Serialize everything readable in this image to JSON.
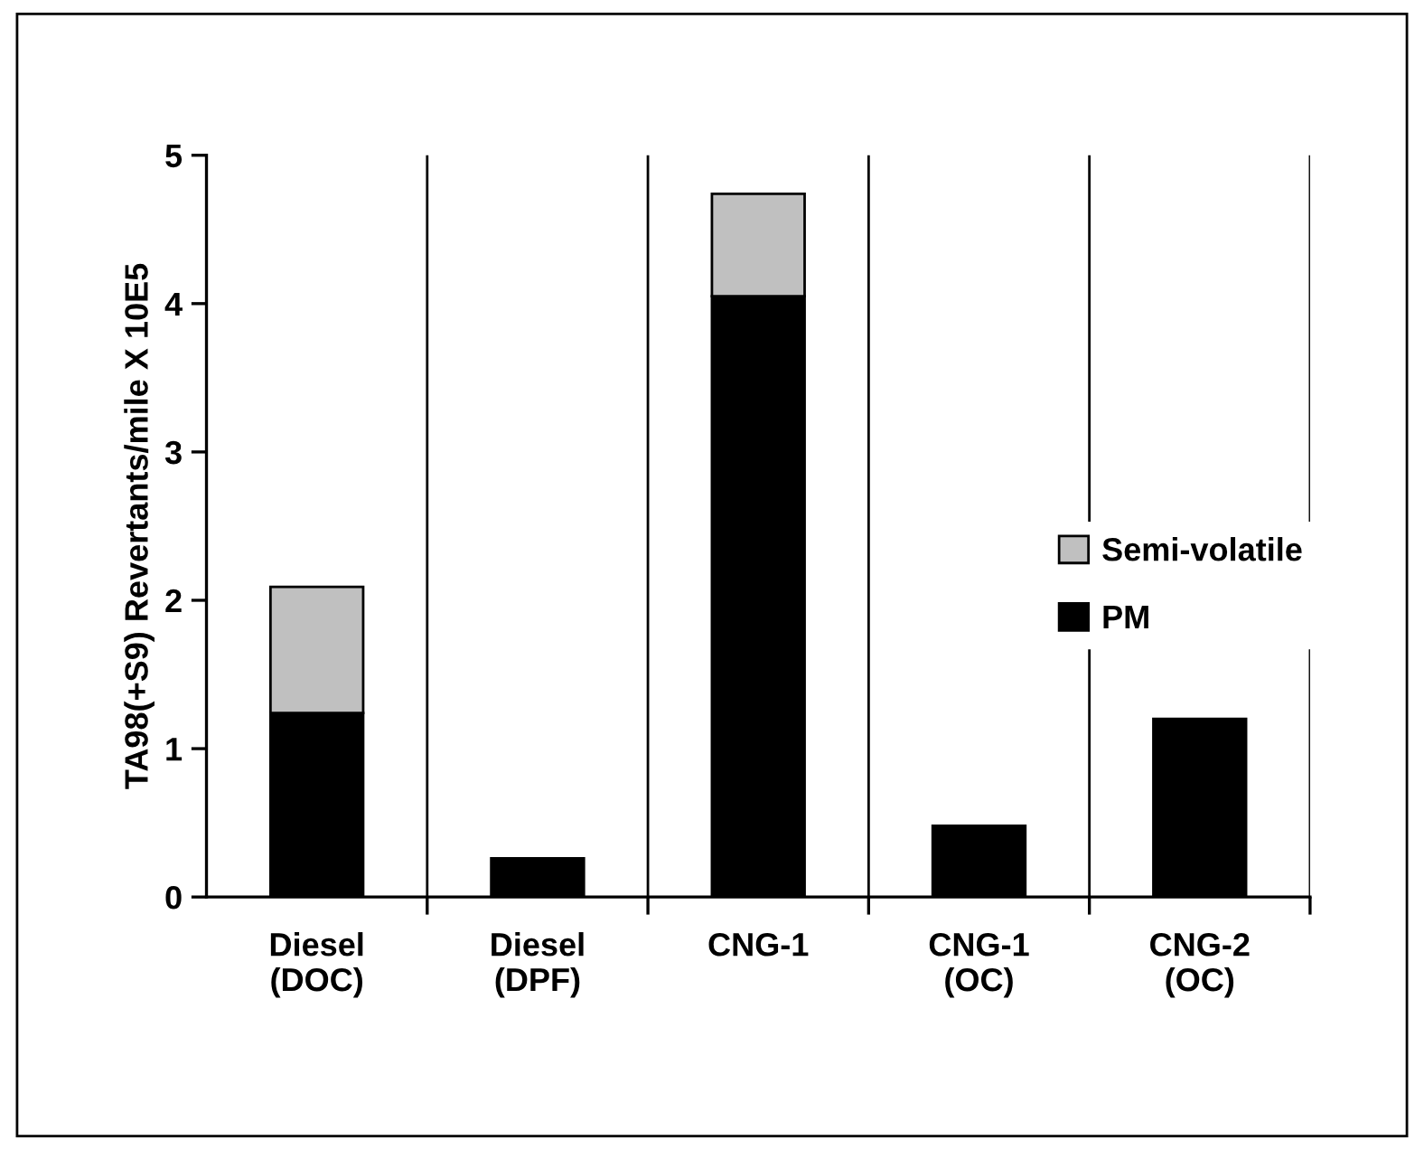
{
  "chart_data": {
    "type": "bar",
    "stacked": true,
    "ylabel": "TA98(+S9) Revertants/mile X 10E5",
    "categories": [
      "Diesel\n(DOC)",
      "Diesel\n(DPF)",
      "CNG-1",
      "CNG-1\n(OC)",
      "CNG-2\n(OC)"
    ],
    "series": [
      {
        "name": "PM",
        "color": "#000000",
        "values": [
          1.24,
          0.26,
          4.05,
          0.48,
          1.2
        ]
      },
      {
        "name": "Semi-volatile",
        "color": "#c0c0c0",
        "values": [
          0.85,
          null,
          0.69,
          null,
          null
        ]
      }
    ],
    "ylim": [
      0,
      5
    ],
    "yticks": [
      0,
      1,
      2,
      3,
      4,
      5
    ],
    "grid": "x",
    "legend": "right"
  }
}
